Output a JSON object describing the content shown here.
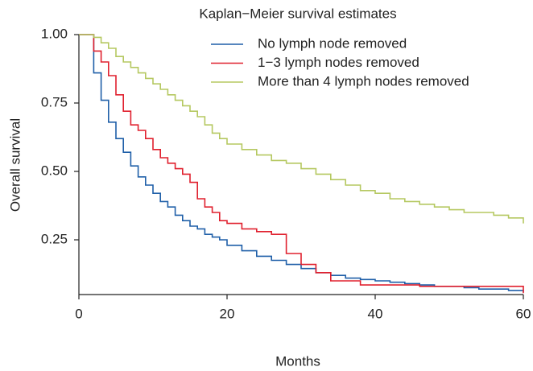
{
  "chart_data": {
    "type": "step",
    "title": "Kaplan−Meier survival estimates",
    "xlabel": "Months",
    "ylabel": "Overall survival",
    "x": [
      0,
      1,
      2,
      3,
      4,
      5,
      6,
      7,
      8,
      9,
      10,
      11,
      12,
      13,
      14,
      15,
      16,
      17,
      18,
      19,
      20,
      22,
      24,
      26,
      28,
      30,
      32,
      34,
      36,
      38,
      40,
      42,
      44,
      46,
      48,
      50,
      52,
      54,
      56,
      58,
      60
    ],
    "series": [
      {
        "name": "No lymph node removed",
        "color": "#1f5fa8",
        "values": [
          1,
          1,
          0.86,
          0.76,
          0.68,
          0.62,
          0.57,
          0.52,
          0.48,
          0.45,
          0.42,
          0.39,
          0.37,
          0.34,
          0.32,
          0.3,
          0.29,
          0.27,
          0.26,
          0.25,
          0.23,
          0.21,
          0.19,
          0.175,
          0.16,
          0.145,
          0.13,
          0.12,
          0.11,
          0.105,
          0.1,
          0.095,
          0.09,
          0.085,
          0.08,
          0.08,
          0.075,
          0.07,
          0.07,
          0.065,
          0.06
        ]
      },
      {
        "name": "1−3 lymph nodes removed",
        "color": "#e0202e",
        "values": [
          1,
          1,
          0.94,
          0.9,
          0.85,
          0.78,
          0.72,
          0.67,
          0.65,
          0.62,
          0.58,
          0.55,
          0.53,
          0.51,
          0.49,
          0.46,
          0.4,
          0.37,
          0.35,
          0.32,
          0.31,
          0.29,
          0.28,
          0.27,
          0.2,
          0.16,
          0.13,
          0.1,
          0.1,
          0.085,
          0.085,
          0.085,
          0.085,
          0.08,
          0.08,
          0.08,
          0.08,
          0.08,
          0.08,
          0.08,
          0.055
        ]
      },
      {
        "name": "More than 4 lymph nodes removed",
        "color": "#b5c860",
        "values": [
          1,
          1,
          0.99,
          0.97,
          0.95,
          0.92,
          0.9,
          0.88,
          0.86,
          0.84,
          0.82,
          0.8,
          0.78,
          0.76,
          0.74,
          0.72,
          0.7,
          0.67,
          0.64,
          0.62,
          0.6,
          0.58,
          0.56,
          0.54,
          0.53,
          0.51,
          0.49,
          0.47,
          0.45,
          0.43,
          0.42,
          0.4,
          0.39,
          0.38,
          0.37,
          0.36,
          0.35,
          0.35,
          0.34,
          0.33,
          0.31
        ]
      }
    ],
    "xlim": [
      0,
      60
    ],
    "xticks": [
      0,
      20,
      40,
      60
    ],
    "ylim": [
      0.05,
      1.0
    ],
    "yticks": [
      {
        "value": 0.25,
        "label": "0.25"
      },
      {
        "value": 0.5,
        "label": "0.50"
      },
      {
        "value": 0.75,
        "label": "0.75"
      },
      {
        "value": 1.0,
        "label": "1.00"
      }
    ],
    "legend": "top-right"
  }
}
